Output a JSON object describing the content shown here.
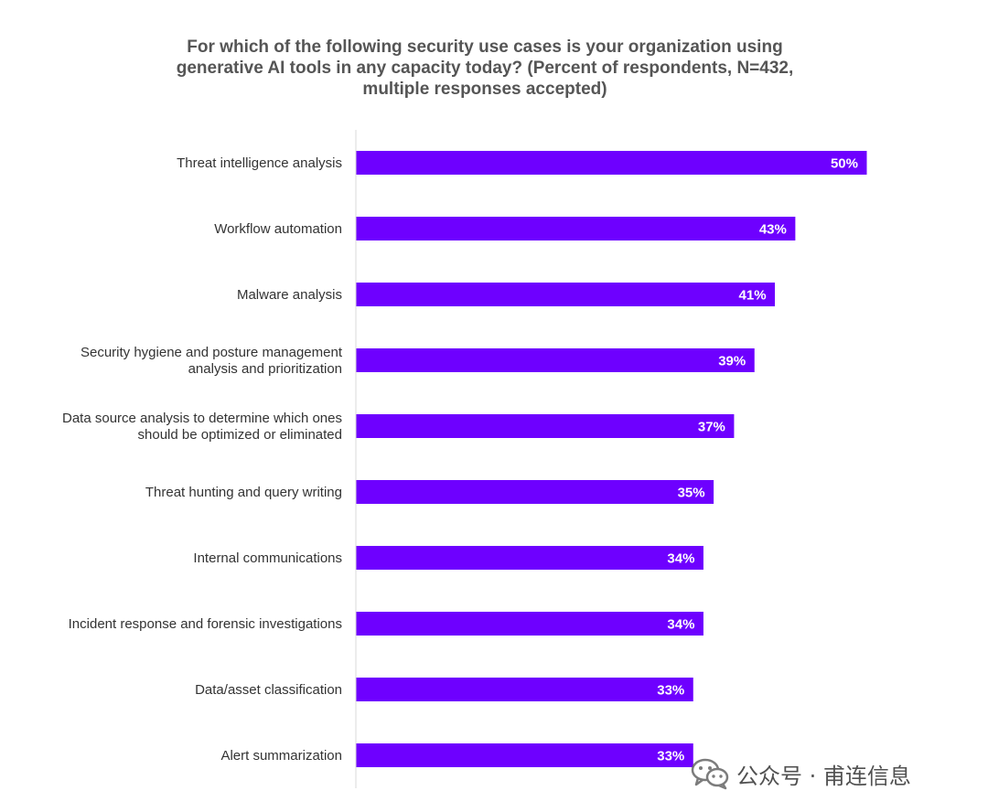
{
  "title_lines": [
    "For which of the following security use cases is your organization using",
    "generative AI tools in any capacity today? (Percent of respondents, N=432,",
    "multiple responses accepted)"
  ],
  "chart_data": {
    "type": "bar",
    "orientation": "horizontal",
    "title": "For which of the following security use cases is your organization using generative AI tools in any capacity today? (Percent of respondents, N=432, multiple responses accepted)",
    "categories": [
      "Threat intelligence analysis",
      "Workflow automation",
      "Malware analysis",
      "Security hygiene and posture management analysis and prioritization",
      "Data source analysis to determine which ones should be optimized or eliminated",
      "Threat hunting and query writing",
      "Internal communications",
      "Incident response and forensic investigations",
      "Data/asset classification",
      "Alert summarization"
    ],
    "category_lines": [
      [
        "Threat intelligence analysis"
      ],
      [
        "Workflow automation"
      ],
      [
        "Malware analysis"
      ],
      [
        "Security hygiene and posture management",
        "analysis and prioritization"
      ],
      [
        "Data source analysis to determine which ones",
        "should be optimized or eliminated"
      ],
      [
        "Threat hunting and query writing"
      ],
      [
        "Internal communications"
      ],
      [
        "Incident response and forensic investigations"
      ],
      [
        "Data/asset classification"
      ],
      [
        "Alert summarization"
      ]
    ],
    "values": [
      50,
      43,
      41,
      39,
      37,
      35,
      34,
      34,
      33,
      33
    ],
    "value_labels": [
      "50%",
      "43%",
      "41%",
      "39%",
      "37%",
      "35%",
      "34%",
      "34%",
      "33%",
      "33%"
    ],
    "unit": "%",
    "xlim": [
      0,
      50
    ],
    "grid": false,
    "legend": "none",
    "bar_color": "#6e00ff",
    "label_color": "#ffffff"
  },
  "watermark": {
    "text": "公众号 · 甫连信息",
    "icon": "wechat-icon"
  }
}
